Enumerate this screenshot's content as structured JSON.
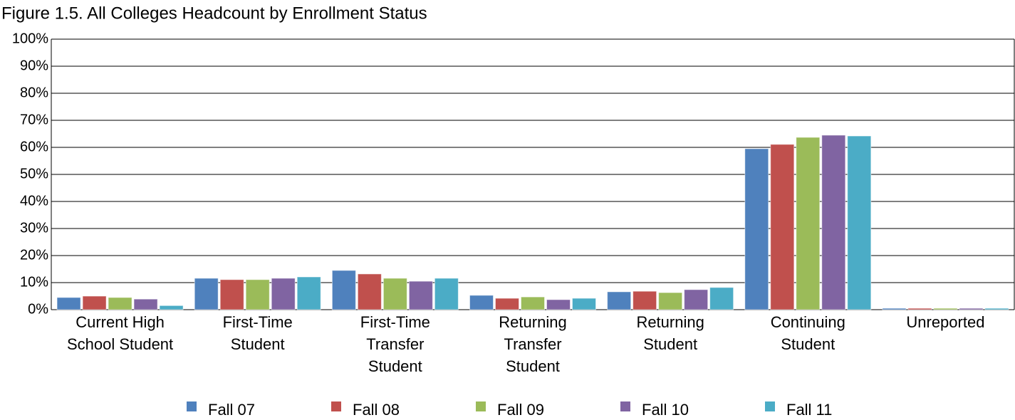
{
  "chart_data": {
    "type": "bar",
    "title": "Figure 1.5. All Colleges Headcount by Enrollment Status",
    "categories": [
      "Current High\nSchool Student",
      "First-Time\nStudent",
      "First-Time\nTransfer\nStudent",
      "Returning\nTransfer\nStudent",
      "Returning\nStudent",
      "Continuing\nStudent",
      "Unreported"
    ],
    "series": [
      {
        "name": "Fall 07",
        "color": "#4f81bd",
        "values": [
          4.5,
          11.6,
          14.5,
          5.3,
          6.6,
          59.5,
          0.5
        ]
      },
      {
        "name": "Fall 08",
        "color": "#c0504d",
        "values": [
          5.0,
          11.1,
          13.2,
          4.2,
          6.8,
          61.1,
          0.5
        ]
      },
      {
        "name": "Fall 09",
        "color": "#9bbb59",
        "values": [
          4.5,
          11.1,
          11.6,
          4.7,
          6.3,
          63.7,
          0.5
        ]
      },
      {
        "name": "Fall 10",
        "color": "#8064a2",
        "values": [
          3.9,
          11.6,
          10.5,
          3.7,
          7.4,
          64.5,
          0.5
        ]
      },
      {
        "name": "Fall 11",
        "color": "#4bacc6",
        "values": [
          1.5,
          12.1,
          11.6,
          4.2,
          8.2,
          64.2,
          0.5
        ]
      }
    ],
    "ylim": [
      0,
      100
    ],
    "yticks": [
      {
        "value": 0,
        "label": "0%"
      },
      {
        "value": 10,
        "label": "10%"
      },
      {
        "value": 20,
        "label": "20%"
      },
      {
        "value": 30,
        "label": "30%"
      },
      {
        "value": 40,
        "label": "40%"
      },
      {
        "value": 50,
        "label": "50%"
      },
      {
        "value": 60,
        "label": "60%"
      },
      {
        "value": 70,
        "label": "70%"
      },
      {
        "value": 80,
        "label": "80%"
      },
      {
        "value": 90,
        "label": "90%"
      },
      {
        "value": 100,
        "label": "100%"
      }
    ],
    "grid": true,
    "legend": "bottom"
  }
}
